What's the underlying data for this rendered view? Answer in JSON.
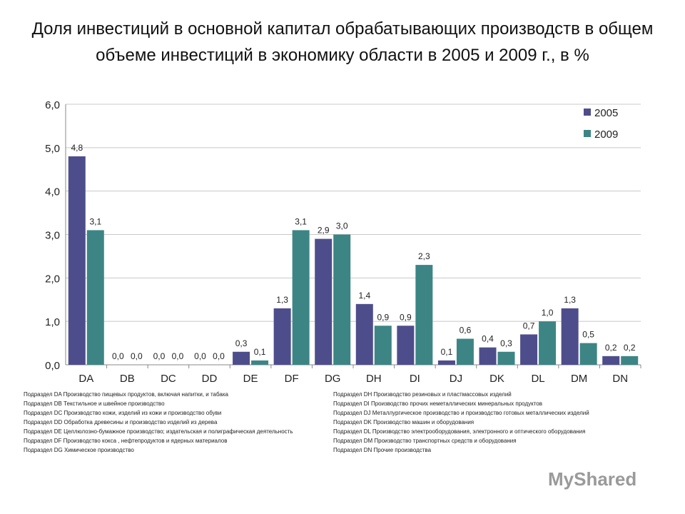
{
  "chart_data": {
    "type": "bar",
    "title": "Доля инвестиций в основной капитал  обрабатывающих производств  в общем объеме инвестиций в экономику области в 2005 и 2009 г., в %",
    "categories": [
      "DA",
      "DB",
      "DC",
      "DD",
      "DE",
      "DF",
      "DG",
      "DH",
      "DI",
      "DJ",
      "DK",
      "DL",
      "DM",
      "DN"
    ],
    "series": [
      {
        "name": "2005",
        "color": "#4e4d8c",
        "values": [
          4.8,
          0.0,
          0.0,
          0.0,
          0.3,
          1.3,
          2.9,
          1.4,
          0.9,
          0.1,
          0.4,
          0.7,
          1.3,
          0.2
        ]
      },
      {
        "name": "2009",
        "color": "#3d8585",
        "values": [
          3.1,
          0.0,
          0.0,
          0.0,
          0.1,
          3.1,
          3.0,
          0.9,
          2.3,
          0.6,
          0.3,
          1.0,
          0.5,
          0.2
        ]
      }
    ],
    "yticks": [
      "0,0",
      "1,0",
      "2,0",
      "3,0",
      "4,0",
      "5,0",
      "6,0"
    ],
    "ylim": [
      0,
      6
    ],
    "grid": true,
    "legend": "top-right",
    "data_labels": [
      [
        "4,8",
        "0,0",
        "0,0",
        "0,0",
        "0,3",
        "1,3",
        "2,9",
        "1,4",
        "0,9",
        "0,1",
        "0,4",
        "0,7",
        "1,3",
        "0,2"
      ],
      [
        "3,1",
        "0,0",
        "0,0",
        "0,0",
        "0,1",
        "3,1",
        "3,0",
        "0,9",
        "2,3",
        "0,6",
        "0,3",
        "1,0",
        "0,5",
        "0,2"
      ]
    ]
  },
  "footnotes_left": [
    "Подраздел DA Производство пищевых продуктов, включая напитки, и табака",
    "Подраздел DB Текстильное и швейное производство",
    "Подраздел DC Производство кожи, изделий из кожи и производство обуви",
    "Подраздел DD Обработка древесины и производство изделий из дерева",
    "Подраздел DE Целлюлозно-бумажное производство; издательская и полиграфическая деятельность",
    "Подраздел DF Производство кокса , нефтепродуктов и ядерных материалов",
    "Подраздел DG Химическое производство"
  ],
  "footnotes_right": [
    "Подраздел DH Производство резиновых и пластмассовых изделий",
    "Подраздел DI Производство прочих неметаллических минеральных продуктов",
    "Подраздел DJ Металлургическое производство и производство готовых металлических изделий",
    "Подраздел DK Производство машин и оборудования",
    "Подраздел DL Производство электрооборудования, электронного и оптического оборудования",
    "Подраздел DM Производство транспортных средств и оборудования",
    "Подраздел DN Прочие производства"
  ],
  "watermark": "MyShared"
}
